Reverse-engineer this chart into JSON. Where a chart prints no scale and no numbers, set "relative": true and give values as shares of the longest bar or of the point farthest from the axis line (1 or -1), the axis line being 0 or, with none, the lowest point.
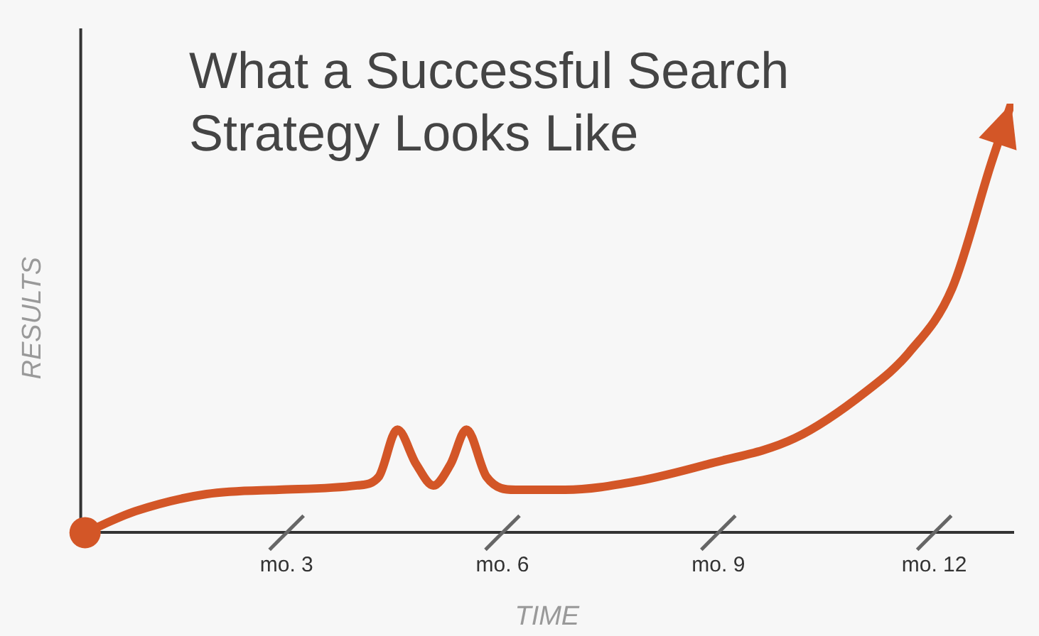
{
  "chart_data": {
    "type": "line",
    "title": "What a Successful Search Strategy Looks Like",
    "xlabel": "TIME",
    "ylabel": "RESULTS",
    "relative": true,
    "x": [
      0.2,
      0.9,
      1.89,
      2.89,
      3.98,
      4.28,
      4.54,
      4.8,
      5.04,
      5.28,
      5.5,
      5.78,
      6.18,
      6.87,
      7.87,
      8.86,
      10.06,
      11.06,
      11.65,
      12.25,
      12.79,
      13.07
    ],
    "series": [
      {
        "color": "#d35627",
        "values": [
          0,
          0.05,
          0.09,
          0.1,
          0.11,
          0.13,
          0.24,
          0.16,
          0.11,
          0.16,
          0.24,
          0.13,
          0.1,
          0.1,
          0.12,
          0.16,
          0.22,
          0.33,
          0.42,
          0.57,
          0.86,
          1
        ]
      }
    ],
    "xlim": [
      0.14,
      13.1
    ],
    "xticks": [
      {
        "value": 3,
        "label": "mo. 3"
      },
      {
        "value": 6,
        "label": "mo. 6"
      },
      {
        "value": 9,
        "label": "mo. 9"
      },
      {
        "value": 12,
        "label": "mo. 12"
      }
    ]
  }
}
